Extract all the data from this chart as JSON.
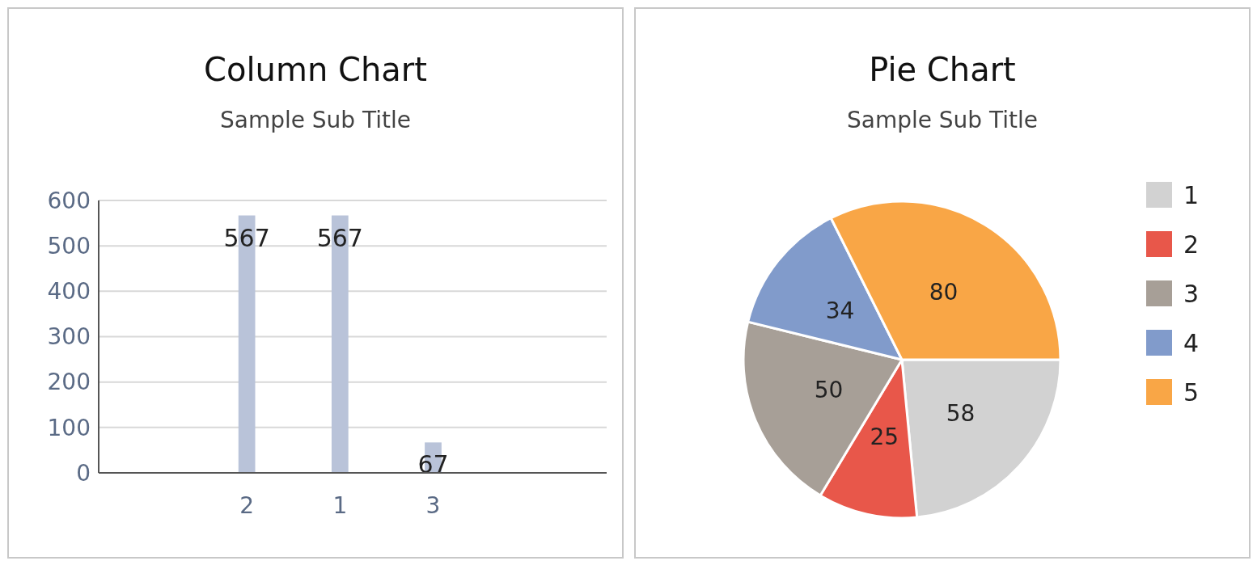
{
  "chart_data": [
    {
      "type": "bar",
      "title": "Column Chart",
      "subtitle": "Sample Sub Title",
      "categories": [
        "2",
        "1",
        "3"
      ],
      "values": [
        567,
        567,
        67
      ],
      "color": "#b9c3d9",
      "ylim": [
        0,
        600
      ],
      "yticks": [
        0,
        100,
        200,
        300,
        400,
        500,
        600
      ],
      "grid": "y",
      "data_labels": true
    },
    {
      "type": "pie",
      "title": "Pie Chart",
      "subtitle": "Sample Sub Title",
      "categories": [
        "1",
        "2",
        "3",
        "4",
        "5"
      ],
      "values": [
        58,
        25,
        50,
        34,
        80
      ],
      "colors": [
        "#d2d2d2",
        "#e8574a",
        "#a79f97",
        "#819bcb",
        "#f9a646"
      ],
      "legend": "right",
      "data_labels": true
    }
  ]
}
